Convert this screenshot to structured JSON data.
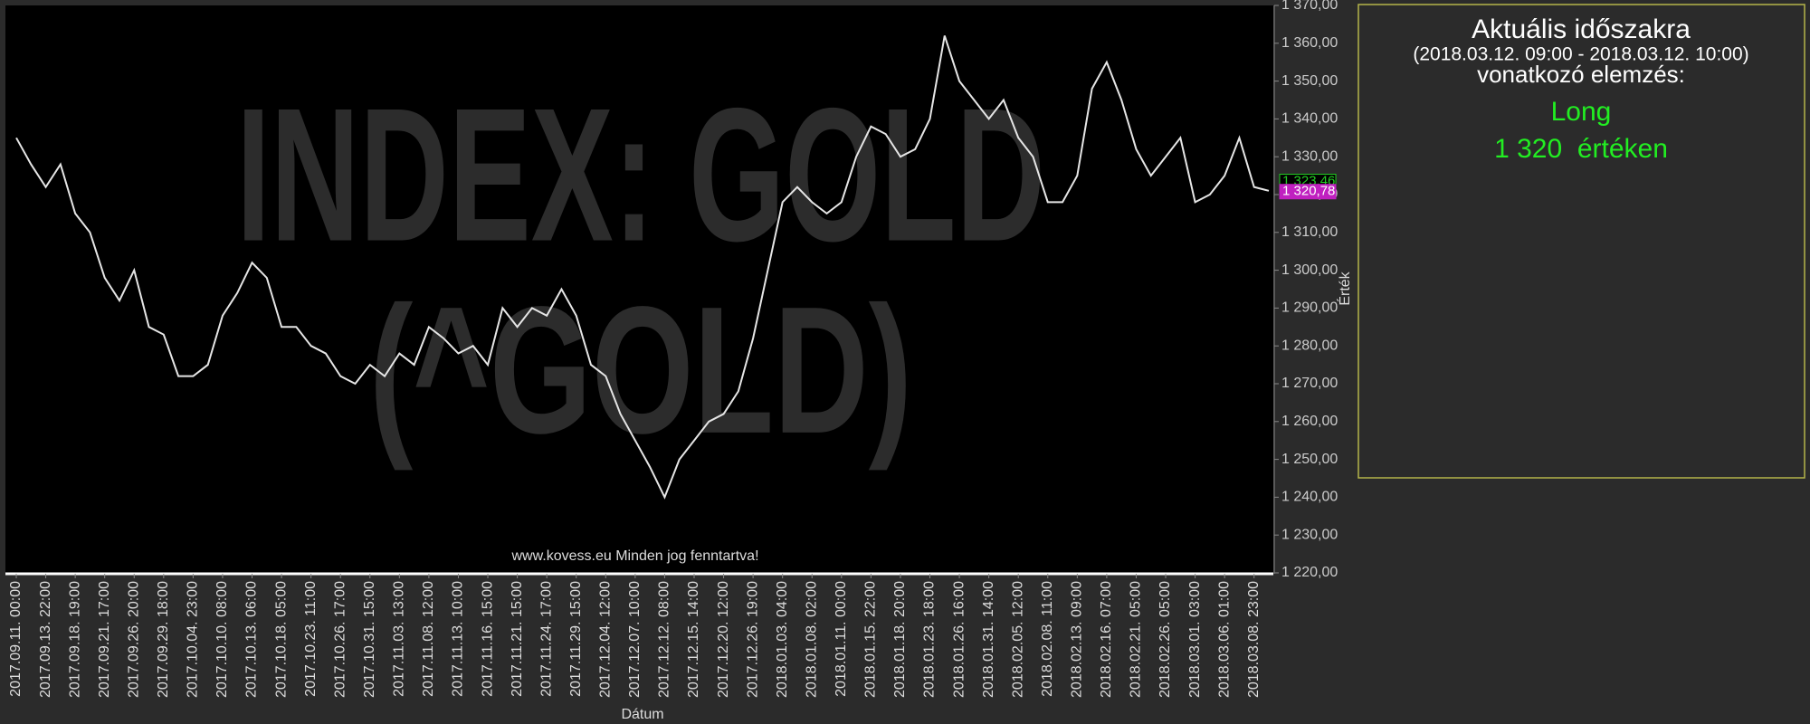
{
  "chart_data": {
    "type": "line",
    "watermark": [
      "INDEX: GOLD",
      "(^GOLD)"
    ],
    "footer": "www.kovess.eu Minden jog fenntartva!",
    "x_label": "Dátum",
    "y_label": "Érték",
    "categories": [
      "2017.09.11. 00:00",
      null,
      "2017.09.13. 22:00",
      null,
      "2017.09.18. 19:00",
      null,
      "2017.09.21. 17:00",
      null,
      "2017.09.26. 20:00",
      null,
      "2017.09.29. 18:00",
      null,
      "2017.10.04. 23:00",
      null,
      "2017.10.10. 08:00",
      null,
      "2017.10.13. 06:00",
      null,
      "2017.10.18. 05:00",
      null,
      "2017.10.23. 11:00",
      null,
      "2017.10.26. 17:00",
      null,
      "2017.10.31. 15:00",
      null,
      "2017.11.03. 13:00",
      null,
      "2017.11.08. 12:00",
      null,
      "2017.11.13. 10:00",
      null,
      "2017.11.16. 15:00",
      null,
      "2017.11.21. 15:00",
      null,
      "2017.11.24. 17:00",
      null,
      "2017.11.29. 15:00",
      null,
      "2017.12.04. 12:00",
      null,
      "2017.12.07. 10:00",
      null,
      "2017.12.12. 08:00",
      null,
      "2017.12.15. 14:00",
      null,
      "2017.12.20. 12:00",
      null,
      "2017.12.26. 19:00",
      null,
      "2018.01.03. 04:00",
      null,
      "2018.01.08. 02:00",
      null,
      "2018.01.11. 00:00",
      null,
      "2018.01.15. 22:00",
      null,
      "2018.01.18. 20:00",
      null,
      "2018.01.23. 18:00",
      null,
      "2018.01.26. 16:00",
      null,
      "2018.01.31. 14:00",
      null,
      "2018.02.05. 12:00",
      null,
      "2018.02.08. 11:00",
      null,
      "2018.02.13. 09:00",
      null,
      "2018.02.16. 07:00",
      null,
      "2018.02.21. 05:00",
      null,
      "2018.02.26. 05:00",
      null,
      "2018.03.01. 03:00",
      null,
      "2018.03.06. 01:00",
      null,
      "2018.03.08. 23:00",
      null
    ],
    "series": [
      {
        "name": "GOLD",
        "color": "#e6e6e6",
        "values": [
          1335,
          1328,
          1322,
          1328,
          1315,
          1310,
          1298,
          1292,
          1300,
          1285,
          1283,
          1272,
          1272,
          1275,
          1288,
          1294,
          1302,
          1298,
          1285,
          1285,
          1280,
          1278,
          1272,
          1270,
          1275,
          1272,
          1278,
          1275,
          1285,
          1282,
          1278,
          1280,
          1275,
          1290,
          1285,
          1290,
          1288,
          1295,
          1288,
          1275,
          1272,
          1262,
          1255,
          1248,
          1240,
          1250,
          1255,
          1260,
          1262,
          1268,
          1282,
          1300,
          1318,
          1322,
          1318,
          1315,
          1318,
          1330,
          1338,
          1336,
          1330,
          1332,
          1340,
          1362,
          1350,
          1345,
          1340,
          1345,
          1335,
          1330,
          1318,
          1318,
          1325,
          1348,
          1355,
          1345,
          1332,
          1325,
          1330,
          1335,
          1318,
          1320,
          1325,
          1335,
          1322,
          1321
        ]
      }
    ],
    "ylim": [
      1220,
      1370
    ],
    "yticks": [
      {
        "value": 1220,
        "label": "1 220,00"
      },
      {
        "value": 1230,
        "label": "1 230,00"
      },
      {
        "value": 1240,
        "label": "1 240,00"
      },
      {
        "value": 1250,
        "label": "1 250,00"
      },
      {
        "value": 1260,
        "label": "1 260,00"
      },
      {
        "value": 1270,
        "label": "1 270,00"
      },
      {
        "value": 1280,
        "label": "1 280,00"
      },
      {
        "value": 1290,
        "label": "1 290,00"
      },
      {
        "value": 1300,
        "label": "1 300,00"
      },
      {
        "value": 1310,
        "label": "1 310,00"
      },
      {
        "value": 1320,
        "label": "1 320,00"
      },
      {
        "value": 1330,
        "label": "1 330,00"
      },
      {
        "value": 1340,
        "label": "1 340,00"
      },
      {
        "value": 1350,
        "label": "1 350,00"
      },
      {
        "value": 1360,
        "label": "1 360,00"
      },
      {
        "value": 1370,
        "label": "1 370,00"
      }
    ],
    "price_tags": [
      {
        "value": 1323.46,
        "label": "1 323,46",
        "color": "#22cc22"
      },
      {
        "value": 1320.78,
        "label": "1 320,78",
        "color": "#c020c0"
      }
    ]
  },
  "panel": {
    "title": "Aktuális időszakra",
    "period": "(2018.03.12. 09:00 - 2018.03.12. 10:00)",
    "subtitle": "vonatkozó elemzés:",
    "signal": "Long",
    "level": "1 320  értéken"
  }
}
